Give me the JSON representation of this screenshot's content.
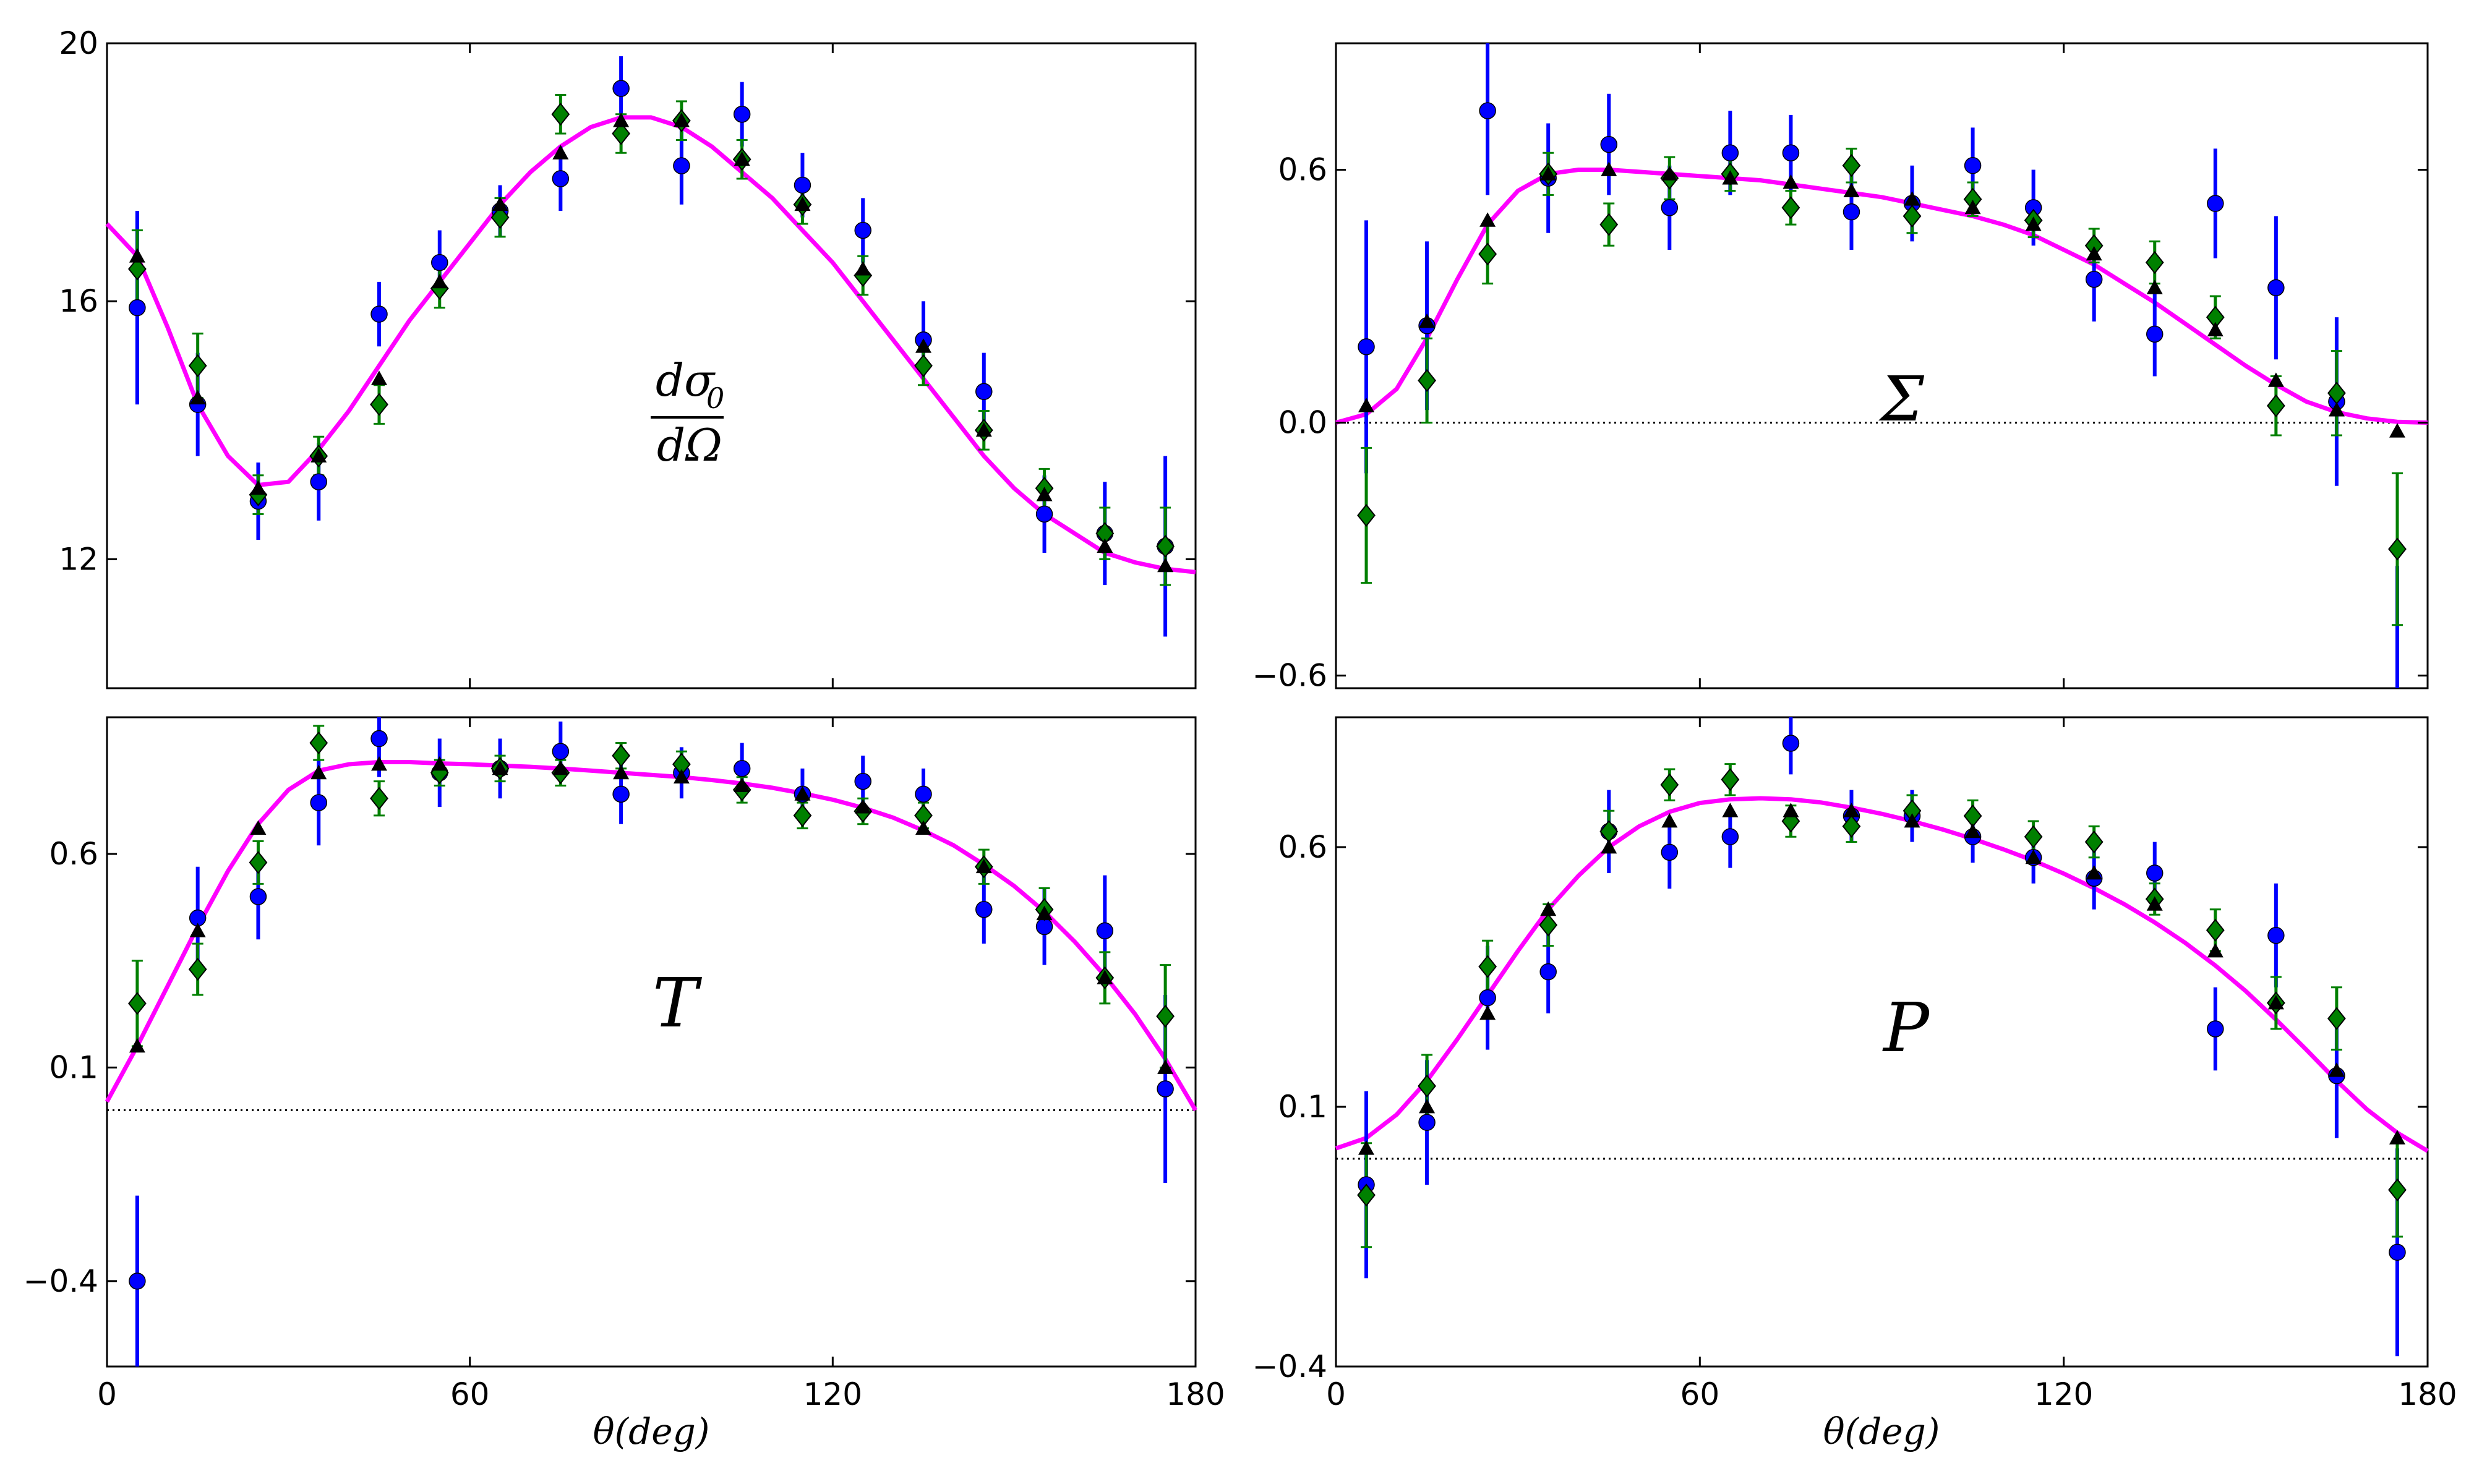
{
  "colors": {
    "fit": "#ff00ff",
    "blue": "#0000ff",
    "green": "#008000",
    "black": "#000000",
    "zero_line": "#000000"
  },
  "chart_data": [
    {
      "id": "dsigma",
      "type": "scatter",
      "label_num": "dσ",
      "label_sub": "0",
      "label_den": "dΩ",
      "xlabel": "",
      "xlim": [
        0,
        180
      ],
      "ylim": [
        10,
        20
      ],
      "yticks": [
        "12",
        "16",
        "20"
      ],
      "xticks": [],
      "zero_line": false,
      "x": [
        5,
        15,
        25,
        35,
        45,
        55,
        65,
        75,
        85,
        95,
        105,
        115,
        125,
        135,
        145,
        155,
        165,
        175
      ],
      "series": [
        {
          "name": "blue",
          "marker": "circle",
          "values": [
            15.9,
            14.4,
            12.9,
            13.2,
            15.8,
            16.6,
            17.4,
            17.9,
            19.3,
            18.1,
            18.9,
            17.8,
            17.1,
            15.4,
            14.6,
            12.7,
            12.4,
            12.2
          ],
          "err": [
            1.5,
            0.8,
            0.6,
            0.6,
            0.5,
            0.5,
            0.4,
            0.5,
            0.5,
            0.6,
            0.5,
            0.5,
            0.5,
            0.6,
            0.6,
            0.6,
            0.8,
            1.4
          ]
        },
        {
          "name": "green",
          "marker": "diamond",
          "values": [
            16.5,
            15.0,
            13.0,
            13.6,
            14.4,
            16.2,
            17.3,
            18.9,
            18.6,
            18.8,
            18.2,
            17.5,
            16.4,
            15.0,
            14.0,
            13.1,
            12.4,
            12.2
          ],
          "err": [
            0.6,
            0.5,
            0.3,
            0.3,
            0.3,
            0.3,
            0.3,
            0.3,
            0.3,
            0.3,
            0.3,
            0.3,
            0.3,
            0.3,
            0.3,
            0.3,
            0.4,
            0.6
          ]
        },
        {
          "name": "black",
          "marker": "triangle",
          "values": [
            16.7,
            14.5,
            13.1,
            13.6,
            14.8,
            16.3,
            17.5,
            18.3,
            18.8,
            18.8,
            18.2,
            17.5,
            16.5,
            15.3,
            14.0,
            13.0,
            12.2,
            11.9
          ],
          "err": []
        }
      ],
      "fit": {
        "x": [
          0,
          5,
          10,
          15,
          20,
          25,
          30,
          35,
          40,
          45,
          50,
          55,
          60,
          65,
          70,
          75,
          80,
          85,
          90,
          95,
          100,
          105,
          110,
          115,
          120,
          125,
          130,
          135,
          140,
          145,
          150,
          155,
          160,
          165,
          170,
          175,
          180
        ],
        "y": [
          17.2,
          16.7,
          15.6,
          14.4,
          13.6,
          13.15,
          13.2,
          13.7,
          14.3,
          15.0,
          15.7,
          16.3,
          16.9,
          17.5,
          18.0,
          18.4,
          18.7,
          18.85,
          18.85,
          18.7,
          18.4,
          18.0,
          17.6,
          17.1,
          16.6,
          16.0,
          15.4,
          14.8,
          14.2,
          13.6,
          13.1,
          12.7,
          12.4,
          12.1,
          11.95,
          11.85,
          11.8
        ]
      }
    },
    {
      "id": "sigma",
      "type": "scatter",
      "label": "Σ",
      "xlabel": "",
      "xlim": [
        0,
        180
      ],
      "ylim": [
        -0.63,
        0.9
      ],
      "yticks": [
        "0.6",
        "0.0",
        "−0.6"
      ],
      "ytick_values": [
        0.6,
        0.0,
        -0.6
      ],
      "xticks": [],
      "zero_line": true,
      "x": [
        5,
        15,
        25,
        35,
        45,
        55,
        65,
        75,
        85,
        95,
        105,
        115,
        125,
        135,
        145,
        155,
        165,
        175
      ],
      "series": [
        {
          "name": "blue",
          "marker": "circle",
          "values": [
            0.18,
            0.23,
            0.74,
            0.58,
            0.66,
            0.51,
            0.64,
            0.64,
            0.5,
            0.52,
            0.61,
            0.51,
            0.34,
            0.21,
            0.52,
            0.32,
            0.05,
            -0.64
          ],
          "err": [
            0.3,
            0.2,
            0.2,
            0.13,
            0.12,
            0.1,
            0.1,
            0.09,
            0.09,
            0.09,
            0.09,
            0.09,
            0.1,
            0.1,
            0.13,
            0.17,
            0.2,
            0.3
          ]
        },
        {
          "name": "green",
          "marker": "diamond",
          "values": [
            -0.22,
            0.1,
            0.4,
            0.59,
            0.47,
            0.58,
            0.59,
            0.51,
            0.61,
            0.49,
            0.53,
            0.48,
            0.42,
            0.38,
            0.25,
            0.04,
            0.07,
            -0.3
          ],
          "err": [
            0.16,
            0.1,
            0.07,
            0.05,
            0.05,
            0.05,
            0.04,
            0.04,
            0.04,
            0.04,
            0.04,
            0.04,
            0.04,
            0.05,
            0.05,
            0.07,
            0.1,
            0.18
          ]
        },
        {
          "name": "black",
          "marker": "triangle",
          "values": [
            0.04,
            0.24,
            0.48,
            0.59,
            0.6,
            0.59,
            0.58,
            0.57,
            0.55,
            0.53,
            0.51,
            0.47,
            0.4,
            0.32,
            0.22,
            0.1,
            0.03,
            -0.02
          ],
          "err": []
        }
      ],
      "fit": {
        "x": [
          0,
          5,
          10,
          15,
          20,
          25,
          30,
          35,
          40,
          45,
          50,
          55,
          60,
          65,
          70,
          75,
          80,
          85,
          90,
          95,
          100,
          105,
          110,
          115,
          120,
          125,
          130,
          135,
          140,
          145,
          150,
          155,
          160,
          165,
          170,
          175,
          180
        ],
        "y": [
          0.0,
          0.02,
          0.08,
          0.2,
          0.34,
          0.47,
          0.55,
          0.59,
          0.6,
          0.6,
          0.595,
          0.59,
          0.585,
          0.58,
          0.575,
          0.565,
          0.555,
          0.545,
          0.535,
          0.52,
          0.505,
          0.49,
          0.47,
          0.445,
          0.41,
          0.375,
          0.33,
          0.285,
          0.235,
          0.185,
          0.135,
          0.09,
          0.05,
          0.025,
          0.01,
          0.002,
          0.0
        ]
      }
    },
    {
      "id": "T",
      "type": "scatter",
      "label": "T",
      "xlabel": "θ(deg)",
      "xlim": [
        0,
        180
      ],
      "ylim": [
        -0.6,
        0.92
      ],
      "yticks": [
        "0.6",
        "0.1",
        "−0.4"
      ],
      "ytick_values": [
        0.6,
        0.1,
        -0.4
      ],
      "xticks": [
        "0",
        "60",
        "120",
        "180"
      ],
      "zero_line": true,
      "x": [
        5,
        15,
        25,
        35,
        45,
        55,
        65,
        75,
        85,
        95,
        105,
        115,
        125,
        135,
        145,
        155,
        165,
        175
      ],
      "series": [
        {
          "name": "blue",
          "marker": "circle",
          "values": [
            -0.4,
            0.45,
            0.5,
            0.72,
            0.87,
            0.79,
            0.8,
            0.84,
            0.74,
            0.79,
            0.8,
            0.74,
            0.77,
            0.74,
            0.47,
            0.43,
            0.42,
            0.05
          ],
          "err": [
            0.2,
            0.12,
            0.1,
            0.1,
            0.09,
            0.08,
            0.07,
            0.07,
            0.07,
            0.06,
            0.06,
            0.06,
            0.06,
            0.06,
            0.08,
            0.09,
            0.13,
            0.22
          ]
        },
        {
          "name": "green",
          "marker": "diamond",
          "values": [
            0.25,
            0.33,
            0.58,
            0.86,
            0.73,
            0.79,
            0.8,
            0.79,
            0.83,
            0.81,
            0.75,
            0.69,
            0.7,
            0.69,
            0.57,
            0.47,
            0.31,
            0.22
          ],
          "err": [
            0.1,
            0.06,
            0.05,
            0.04,
            0.04,
            0.03,
            0.03,
            0.03,
            0.03,
            0.03,
            0.03,
            0.03,
            0.03,
            0.03,
            0.04,
            0.05,
            0.06,
            0.12
          ]
        },
        {
          "name": "black",
          "marker": "triangle",
          "values": [
            0.15,
            0.42,
            0.66,
            0.79,
            0.81,
            0.81,
            0.8,
            0.8,
            0.79,
            0.78,
            0.76,
            0.74,
            0.71,
            0.66,
            0.57,
            0.46,
            0.31,
            0.1
          ],
          "err": []
        }
      ],
      "fit": {
        "x": [
          0,
          5,
          10,
          15,
          20,
          25,
          30,
          35,
          40,
          45,
          50,
          55,
          60,
          65,
          70,
          75,
          80,
          85,
          90,
          95,
          100,
          105,
          110,
          115,
          120,
          125,
          130,
          135,
          140,
          145,
          150,
          155,
          160,
          165,
          170,
          175,
          180
        ],
        "y": [
          0.02,
          0.15,
          0.29,
          0.43,
          0.56,
          0.67,
          0.75,
          0.795,
          0.81,
          0.815,
          0.815,
          0.812,
          0.81,
          0.807,
          0.804,
          0.8,
          0.795,
          0.79,
          0.785,
          0.78,
          0.773,
          0.765,
          0.755,
          0.742,
          0.727,
          0.708,
          0.685,
          0.655,
          0.62,
          0.575,
          0.525,
          0.465,
          0.395,
          0.315,
          0.225,
          0.12,
          0.0
        ]
      }
    },
    {
      "id": "P",
      "type": "scatter",
      "label": "P",
      "xlabel": "θ(deg)",
      "xlim": [
        0,
        180
      ],
      "ylim": [
        -0.4,
        0.85
      ],
      "yticks": [
        "0.6",
        "0.1",
        "−0.4"
      ],
      "ytick_values": [
        0.6,
        0.1,
        -0.4
      ],
      "xticks": [
        "0",
        "60",
        "120",
        "180"
      ],
      "zero_line": true,
      "x": [
        5,
        15,
        25,
        35,
        45,
        55,
        65,
        75,
        85,
        95,
        105,
        115,
        125,
        135,
        145,
        155,
        165,
        175
      ],
      "series": [
        {
          "name": "blue",
          "marker": "circle",
          "values": [
            -0.05,
            0.07,
            0.31,
            0.36,
            0.63,
            0.59,
            0.62,
            0.8,
            0.66,
            0.66,
            0.62,
            0.58,
            0.54,
            0.55,
            0.25,
            0.43,
            0.16,
            -0.18
          ],
          "err": [
            0.18,
            0.12,
            0.1,
            0.08,
            0.08,
            0.07,
            0.06,
            0.06,
            0.05,
            0.05,
            0.05,
            0.05,
            0.06,
            0.06,
            0.08,
            0.1,
            0.12,
            0.2
          ]
        },
        {
          "name": "green",
          "marker": "diamond",
          "values": [
            -0.07,
            0.14,
            0.37,
            0.45,
            0.63,
            0.72,
            0.73,
            0.65,
            0.64,
            0.67,
            0.66,
            0.62,
            0.61,
            0.5,
            0.44,
            0.3,
            0.27,
            -0.06
          ],
          "err": [
            0.1,
            0.06,
            0.05,
            0.04,
            0.04,
            0.03,
            0.03,
            0.03,
            0.03,
            0.03,
            0.03,
            0.03,
            0.03,
            0.03,
            0.04,
            0.05,
            0.06,
            0.09
          ]
        },
        {
          "name": "black",
          "marker": "triangle",
          "values": [
            0.02,
            0.1,
            0.28,
            0.48,
            0.6,
            0.65,
            0.67,
            0.67,
            0.67,
            0.65,
            0.63,
            0.58,
            0.55,
            0.49,
            0.4,
            0.3,
            0.17,
            0.04
          ],
          "err": []
        }
      ],
      "fit": {
        "x": [
          0,
          5,
          10,
          15,
          20,
          25,
          30,
          35,
          40,
          45,
          50,
          55,
          60,
          65,
          70,
          75,
          80,
          85,
          90,
          95,
          100,
          105,
          110,
          115,
          120,
          125,
          130,
          135,
          140,
          145,
          150,
          155,
          160,
          165,
          170,
          175,
          180
        ],
        "y": [
          0.02,
          0.04,
          0.085,
          0.15,
          0.23,
          0.315,
          0.4,
          0.48,
          0.545,
          0.6,
          0.64,
          0.668,
          0.685,
          0.692,
          0.694,
          0.692,
          0.686,
          0.676,
          0.664,
          0.65,
          0.634,
          0.616,
          0.596,
          0.574,
          0.549,
          0.521,
          0.49,
          0.455,
          0.416,
          0.372,
          0.323,
          0.268,
          0.21,
          0.15,
          0.095,
          0.05,
          0.015
        ]
      }
    }
  ]
}
